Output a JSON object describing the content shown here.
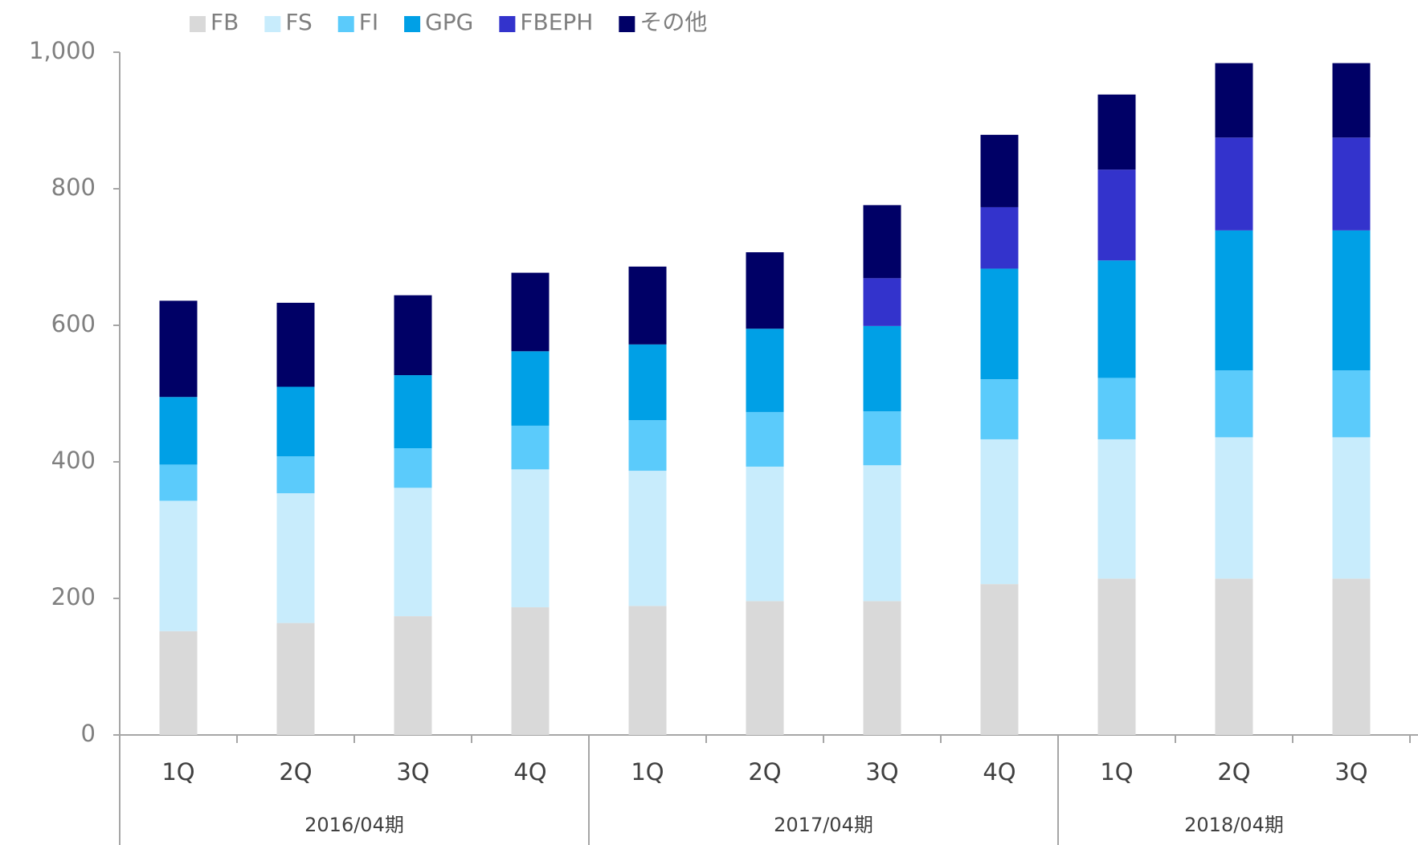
{
  "chart_data": {
    "type": "stacked_bar",
    "category_groups": [
      {
        "label": "2016/04期",
        "categories": [
          "1Q",
          "2Q",
          "3Q",
          "4Q"
        ]
      },
      {
        "label": "2017/04期",
        "categories": [
          "1Q",
          "2Q",
          "3Q",
          "4Q"
        ]
      },
      {
        "label": "2018/04期",
        "categories": [
          "1Q",
          "2Q",
          "3Q"
        ]
      }
    ],
    "series": [
      {
        "name": "FB",
        "color": "#d9d9d9",
        "values": [
          152,
          164,
          174,
          187,
          189,
          196,
          196,
          221,
          229,
          229,
          229
        ]
      },
      {
        "name": "FS",
        "color": "#c8ecfc",
        "values": [
          191,
          190,
          188,
          202,
          198,
          197,
          199,
          212,
          204,
          207,
          207
        ]
      },
      {
        "name": "FI",
        "color": "#5bcbfb",
        "values": [
          53,
          54,
          58,
          64,
          74,
          80,
          79,
          88,
          90,
          98,
          98
        ]
      },
      {
        "name": "GPG",
        "color": "#00a0e6",
        "values": [
          99,
          102,
          107,
          109,
          111,
          122,
          125,
          162,
          172,
          205,
          205
        ]
      },
      {
        "name": "FBEPH",
        "color": "#3333cc",
        "values": [
          0,
          0,
          0,
          0,
          0,
          0,
          70,
          90,
          133,
          136,
          136
        ]
      },
      {
        "name": "その他",
        "color": "#000066",
        "values": [
          141,
          123,
          117,
          115,
          114,
          112,
          107,
          106,
          110,
          109,
          109
        ]
      }
    ],
    "ylim": [
      0,
      1000
    ],
    "yticks": [
      0,
      200,
      400,
      600,
      800,
      {
        "value": 1000,
        "label": "1,000"
      }
    ],
    "legend": "top"
  }
}
